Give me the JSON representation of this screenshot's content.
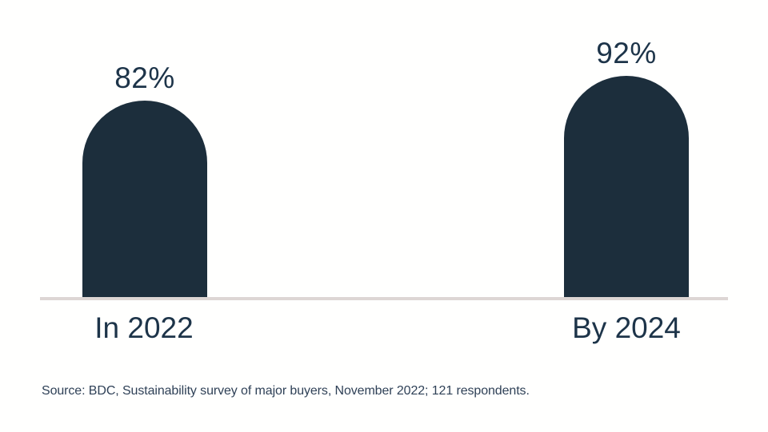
{
  "chart_data": {
    "type": "bar",
    "categories": [
      "In 2022",
      "By 2024"
    ],
    "values": [
      82,
      92
    ],
    "value_labels": [
      "82%",
      "92%"
    ],
    "unit": "%",
    "ylim": [
      0,
      100
    ],
    "grid": false,
    "legend": false,
    "bar_style": "rounded-top-semicircle",
    "source": "Source: BDC, Sustainability survey of major buyers, November 2022; 121 respondents.",
    "colors": {
      "bar_fill": "#1c2e3c",
      "value_label_text": "#1d3449",
      "category_label_text": "#1d3449",
      "baseline": "#ddd6d4",
      "source_text": "#2f4157",
      "background": "#fffffe"
    }
  }
}
